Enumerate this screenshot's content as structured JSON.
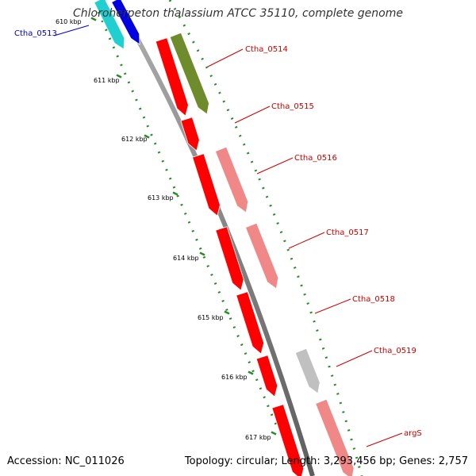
{
  "title": "Chloroherpeton thalassium ATCC 35110, complete genome",
  "accession": "Accession: NC_011026",
  "summary": "Topology: circular; Length: 3,293,456 bp; Genes: 2,757",
  "colors": {
    "backbone": "#8c8c8c",
    "tick": "#2a8a2a",
    "label_red": "#cc0000",
    "label_blue": "#0000cc",
    "cds_red": "#ff0000",
    "cds_pink": "#f08888",
    "cds_olive": "#6e8c2c",
    "cds_gray": "#c0c0c0",
    "cds_cyan": "#20d0d0",
    "cds_blue": "#0000e0"
  },
  "kbp_ticks": [
    "610 kbp",
    "611 kbp",
    "612 kbp",
    "613 kbp",
    "614 kbp",
    "615 kbp",
    "616 kbp",
    "617 kbp"
  ],
  "genes": [
    {
      "label": "Ctha_0513",
      "color": "blue"
    },
    {
      "label": "Ctha_0514",
      "color": "red"
    },
    {
      "label": "Ctha_0515",
      "color": "red"
    },
    {
      "label": "Ctha_0516",
      "color": "red"
    },
    {
      "label": "Ctha_0517",
      "color": "red"
    },
    {
      "label": "Ctha_0518",
      "color": "red"
    },
    {
      "label": "Ctha_0519",
      "color": "red"
    },
    {
      "label": "argS",
      "color": "red"
    }
  ]
}
